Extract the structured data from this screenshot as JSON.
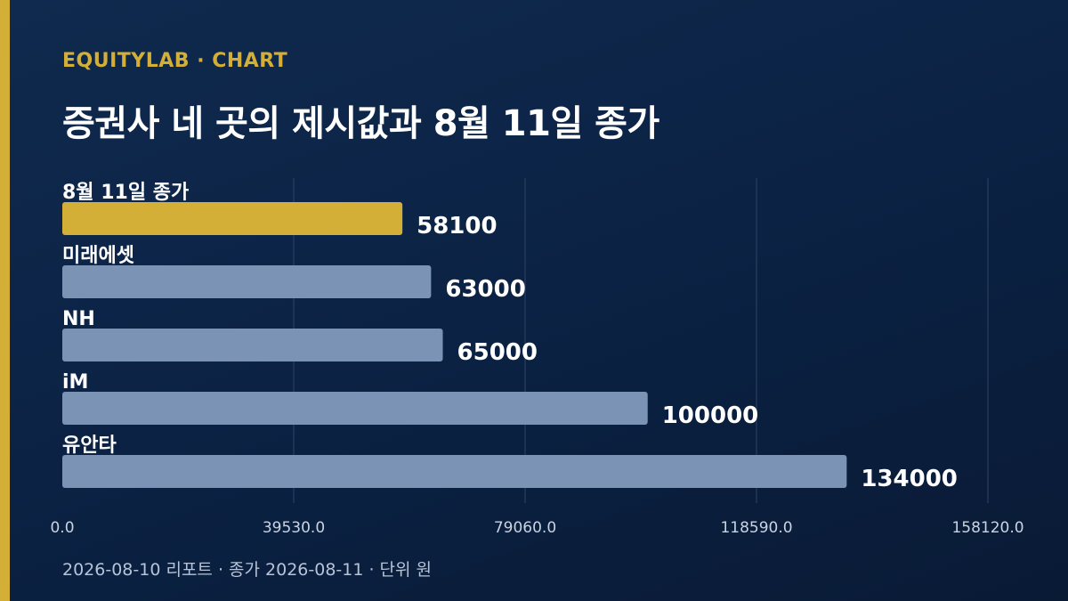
{
  "header": {
    "brand": "EQUITYLAB · CHART",
    "title": "증권사 네 곳의 제시값과 8월 11일 종가"
  },
  "footer": {
    "note": "2026-08-10 리포트 · 종가 2026-08-11 · 단위 원"
  },
  "colors": {
    "background": "#0b2244",
    "accent": "#d4af37",
    "bar_default": "#7b93b5",
    "bar_highlight": "#d4af37",
    "grid": "#2f4466",
    "tick_text": "#c9d3e2"
  },
  "chart_data": {
    "type": "bar",
    "orientation": "horizontal",
    "categories": [
      "8월 11일 종가",
      "미래에셋",
      "NH",
      "iM",
      "유안타"
    ],
    "values": [
      58100,
      63000,
      65000,
      100000,
      134000
    ],
    "value_labels": [
      "58100",
      "63000",
      "65000",
      "100000",
      "134000"
    ],
    "highlight": [
      true,
      false,
      false,
      false,
      false
    ],
    "xlim": [
      0,
      158120
    ],
    "xticks": [
      0,
      39530,
      79060,
      118590,
      158120
    ],
    "xtick_labels": [
      "0.0",
      "39530.0",
      "79060.0",
      "118590.0",
      "158120.0"
    ],
    "grid": true
  }
}
